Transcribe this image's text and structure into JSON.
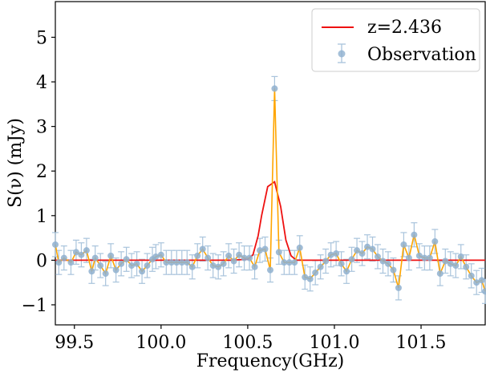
{
  "chart_data": {
    "type": "line",
    "xlabel": "Frequency(GHz)",
    "ylabel": "S(ν) (mJy)",
    "xlim": [
      99.39,
      101.87
    ],
    "ylim": [
      -1.45,
      5.8
    ],
    "xticks": [
      99.5,
      100.0,
      100.5,
      101.0,
      101.5
    ],
    "xtick_labels": [
      "99.5",
      "100.0",
      "100.5",
      "101.0",
      "101.5"
    ],
    "yticks": [
      -1,
      0,
      1,
      2,
      3,
      4,
      5
    ],
    "ytick_labels": [
      "−1",
      "0",
      "1",
      "2",
      "3",
      "4",
      "5"
    ],
    "legend_position": "top-right",
    "grid": false,
    "colors": {
      "model": "#ee1111",
      "connector": "#ffa500",
      "observation": "#8fb0cf",
      "errorbar": "#a9c4dc"
    },
    "series": [
      {
        "name": "z=2.436",
        "kind": "line",
        "points": [
          [
            99.39,
            0.0
          ],
          [
            100.4,
            0.0
          ],
          [
            100.5,
            0.02
          ],
          [
            100.53,
            0.12
          ],
          [
            100.56,
            0.55
          ],
          [
            100.58,
            1.0
          ],
          [
            100.615,
            1.65
          ],
          [
            100.655,
            1.76
          ],
          [
            100.69,
            1.2
          ],
          [
            100.72,
            0.45
          ],
          [
            100.75,
            0.1
          ],
          [
            100.78,
            0.0
          ],
          [
            101.87,
            0.0
          ]
        ]
      },
      {
        "name": "Observation",
        "kind": "errorbar",
        "error": 0.27,
        "x": [
          99.39,
          99.41,
          99.44,
          99.48,
          99.51,
          99.54,
          99.57,
          99.6,
          99.62,
          99.65,
          99.68,
          99.71,
          99.74,
          99.77,
          99.8,
          99.83,
          99.86,
          99.89,
          99.92,
          99.95,
          99.97,
          100.0,
          100.03,
          100.06,
          100.09,
          100.12,
          100.15,
          100.18,
          100.21,
          100.24,
          100.27,
          100.3,
          100.33,
          100.36,
          100.39,
          100.42,
          100.45,
          100.48,
          100.51,
          100.54,
          100.57,
          100.6,
          100.63,
          100.655,
          100.68,
          100.71,
          100.74,
          100.77,
          100.8,
          100.83,
          100.86,
          100.89,
          100.92,
          100.95,
          100.98,
          101.01,
          101.04,
          101.07,
          101.1,
          101.13,
          101.16,
          101.19,
          101.22,
          101.25,
          101.28,
          101.31,
          101.34,
          101.37,
          101.4,
          101.43,
          101.46,
          101.49,
          101.52,
          101.55,
          101.58,
          101.61,
          101.64,
          101.67,
          101.7,
          101.73,
          101.76,
          101.79,
          101.82,
          101.85,
          101.87
        ],
        "y": [
          0.35,
          -0.05,
          0.05,
          -0.05,
          0.18,
          0.12,
          0.22,
          -0.25,
          0.05,
          -0.12,
          -0.3,
          0.1,
          -0.22,
          -0.08,
          0.02,
          -0.12,
          -0.08,
          -0.25,
          -0.12,
          0.02,
          0.08,
          0.12,
          -0.05,
          -0.05,
          -0.05,
          -0.05,
          -0.05,
          -0.15,
          0.1,
          0.25,
          0.05,
          -0.12,
          -0.15,
          -0.08,
          0.1,
          -0.02,
          0.12,
          0.05,
          0.05,
          -0.15,
          0.22,
          0.25,
          -0.22,
          3.85,
          0.18,
          -0.05,
          -0.05,
          -0.05,
          0.28,
          -0.38,
          -0.42,
          -0.28,
          -0.15,
          -0.02,
          0.12,
          0.15,
          -0.08,
          -0.25,
          0.02,
          0.22,
          0.15,
          0.3,
          0.25,
          0.08,
          -0.02,
          -0.08,
          -0.22,
          -0.62,
          0.35,
          0.05,
          0.57,
          0.1,
          0.05,
          0.05,
          0.42,
          -0.3,
          -0.02,
          -0.08,
          -0.12,
          0.08,
          -0.15,
          -0.35,
          -0.5,
          -0.45,
          -0.7
        ]
      }
    ]
  }
}
